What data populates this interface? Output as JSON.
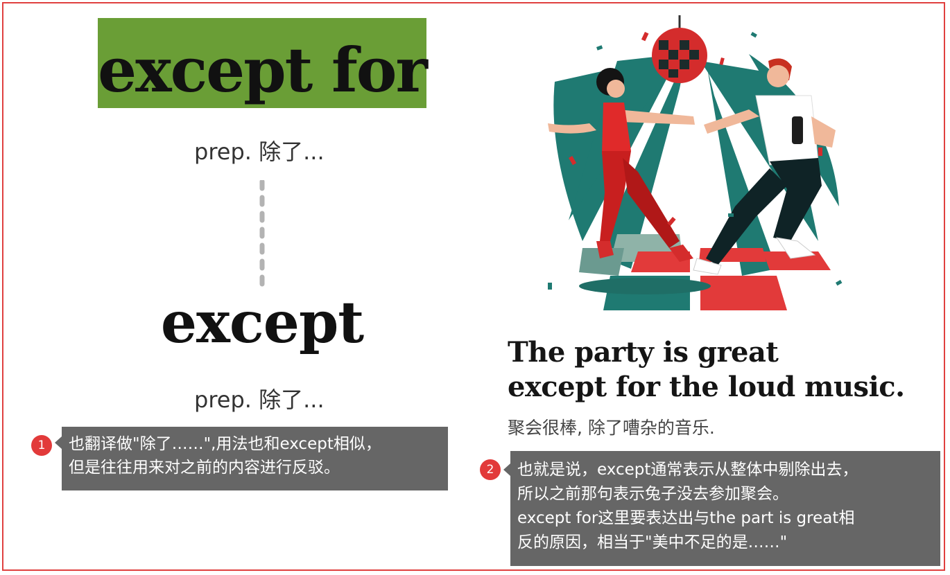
{
  "left": {
    "phrase": "except for",
    "phrase_pos": "prep. 除了...",
    "word": "except",
    "word_pos": "prep. 除了..."
  },
  "right": {
    "sentence_line1": "The party is great",
    "sentence_line2": "except for the loud music.",
    "translation": "聚会很棒, 除了嘈杂的音乐."
  },
  "notes": [
    {
      "number": "1",
      "lines": [
        "也翻译做\"除了……\",用法也和except相似，",
        "但是往往用来对之前的内容进行反驳。"
      ]
    },
    {
      "number": "2",
      "lines": [
        "也就是说，except通常表示从整体中剔除出去，",
        "所以之前那句表示兔子没去参加聚会。",
        "except for这里要表达出与the part is great相",
        "反的原因，相当于\"美中不足的是……\""
      ]
    }
  ],
  "colors": {
    "frame": "#e0403f",
    "phrase_highlight": "#6a9e36",
    "note_bg": "#666666",
    "badge": "#e23a3a",
    "teal": "#1f7a72",
    "red": "#d42c2c"
  }
}
